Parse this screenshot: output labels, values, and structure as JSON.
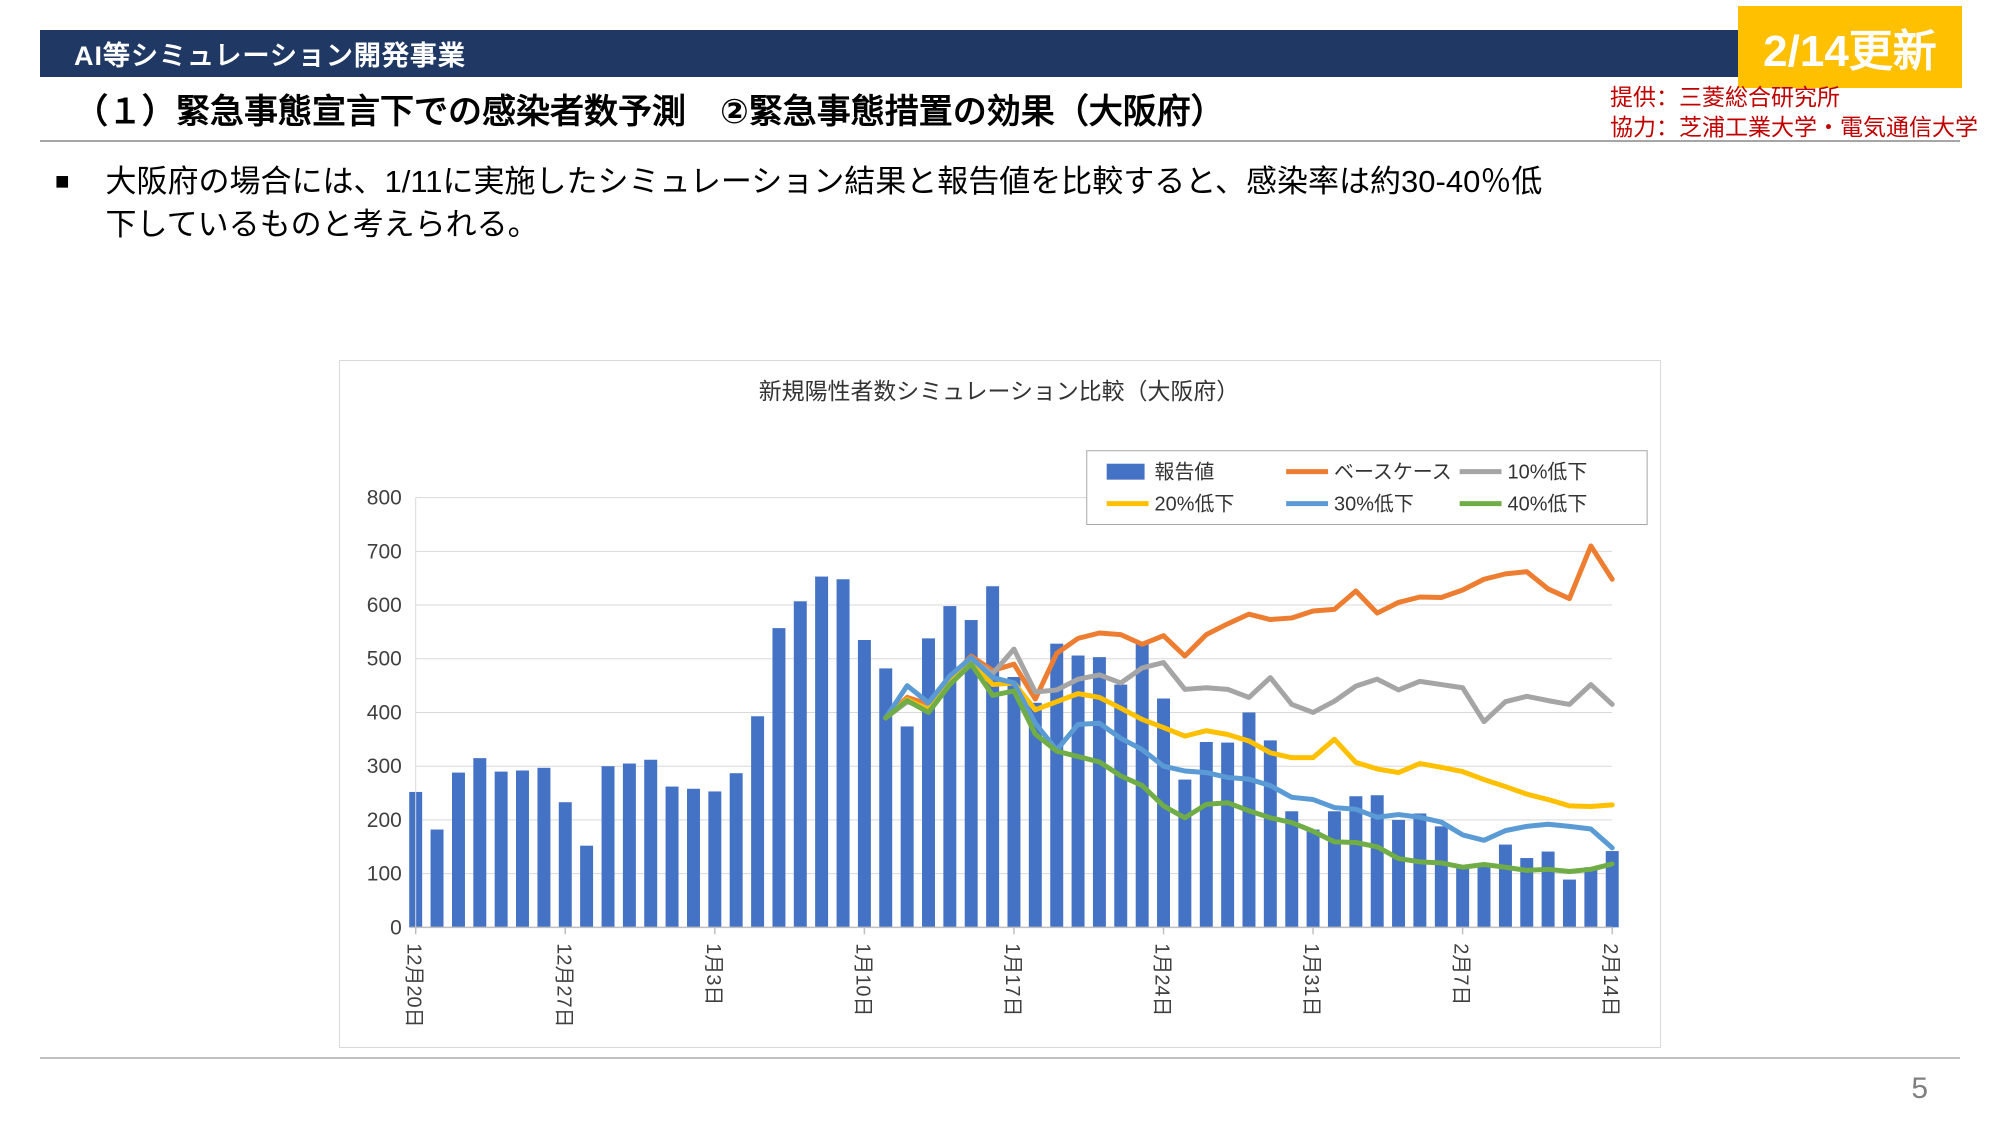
{
  "header": {
    "bar_title": "AI等シミュレーション開発事業",
    "update_badge": "2/14更新",
    "provider": "提供：三菱総合研究所",
    "cooperation": "協力：芝浦工業大学・電気通信大学"
  },
  "title": "（１）緊急事態宣言下での感染者数予測　②緊急事態措置の効果（大阪府）",
  "bullet": {
    "marker": "■",
    "text": "大阪府の場合には、1/11に実施したシミュレーション結果と報告値を比較すると、感染率は約30-40％低下しているものと考えられる。"
  },
  "page_number": "5",
  "colors": {
    "header_navy": "#1f3864",
    "badge_yellow": "#ffc000",
    "credit_red": "#c00000",
    "grid": "#d9d9d9",
    "axis": "#bfbfbf",
    "tick_text": "#404040",
    "chart_text": "#333333",
    "legend_border": "#a6a6a6"
  },
  "chart_data": {
    "type": "bar+line",
    "title": "新規陽性者数シミュレーション比較（大阪府）",
    "xlabel": "",
    "ylabel": "",
    "ylim": [
      0,
      800
    ],
    "ytick_interval": 100,
    "grid": true,
    "legend_position": "upper-right",
    "x_tick_every": 7,
    "x_tick_labels": [
      "12月20日",
      "12月27日",
      "1月3日",
      "1月10日",
      "1月17日",
      "1月24日",
      "1月31日",
      "2月7日",
      "2月14日"
    ],
    "categories": [
      "12月20日",
      "12月21日",
      "12月22日",
      "12月23日",
      "12月24日",
      "12月25日",
      "12月26日",
      "12月27日",
      "12月28日",
      "12月29日",
      "12月30日",
      "12月31日",
      "1月1日",
      "1月2日",
      "1月3日",
      "1月4日",
      "1月5日",
      "1月6日",
      "1月7日",
      "1月8日",
      "1月9日",
      "1月10日",
      "1月11日",
      "1月12日",
      "1月13日",
      "1月14日",
      "1月15日",
      "1月16日",
      "1月17日",
      "1月18日",
      "1月19日",
      "1月20日",
      "1月21日",
      "1月22日",
      "1月23日",
      "1月24日",
      "1月25日",
      "1月26日",
      "1月27日",
      "1月28日",
      "1月29日",
      "1月30日",
      "1月31日",
      "2月1日",
      "2月2日",
      "2月3日",
      "2月4日",
      "2月5日",
      "2月6日",
      "2月7日",
      "2月8日",
      "2月9日",
      "2月10日",
      "2月11日",
      "2月12日",
      "2月13日",
      "2月14日"
    ],
    "bar_series": {
      "name": "報告値",
      "color": "#4472c4",
      "values": [
        252,
        182,
        288,
        315,
        290,
        292,
        297,
        233,
        152,
        300,
        305,
        312,
        262,
        258,
        253,
        287,
        393,
        557,
        607,
        653,
        648,
        535,
        482,
        374,
        538,
        598,
        572,
        635,
        466,
        418,
        528,
        506,
        503,
        452,
        528,
        426,
        275,
        345,
        344,
        400,
        348,
        216,
        182,
        216,
        244,
        246,
        200,
        212,
        188,
        114,
        114,
        154,
        129,
        141,
        89,
        112,
        142
      ]
    },
    "line_series": [
      {
        "name": "ベースケース",
        "color": "#ed7d31",
        "start_index": 22,
        "values": [
          390,
          428,
          415,
          463,
          505,
          478,
          490,
          425,
          510,
          538,
          548,
          545,
          527,
          543,
          505,
          545,
          565,
          583,
          573,
          576,
          589,
          592,
          626,
          585,
          605,
          615,
          614,
          628,
          648,
          658,
          662,
          630,
          612,
          710,
          648
        ]
      },
      {
        "name": "10%低下",
        "color": "#a5a5a5",
        "start_index": 22,
        "values": [
          390,
          420,
          408,
          455,
          500,
          472,
          518,
          438,
          442,
          462,
          470,
          455,
          483,
          493,
          443,
          446,
          443,
          428,
          465,
          415,
          400,
          421,
          449,
          462,
          442,
          458,
          452,
          446,
          383,
          420,
          430,
          422,
          415,
          452,
          415
        ]
      },
      {
        "name": "20%低下",
        "color": "#ffc000",
        "start_index": 22,
        "values": [
          390,
          424,
          405,
          458,
          498,
          452,
          455,
          405,
          420,
          435,
          428,
          408,
          387,
          372,
          356,
          366,
          359,
          347,
          325,
          316,
          316,
          350,
          307,
          295,
          288,
          305,
          298,
          290,
          275,
          262,
          248,
          238,
          226,
          225,
          228
        ]
      },
      {
        "name": "30%低下",
        "color": "#5b9bd5",
        "start_index": 22,
        "values": [
          390,
          450,
          418,
          468,
          502,
          465,
          455,
          380,
          330,
          378,
          380,
          352,
          331,
          300,
          291,
          288,
          279,
          276,
          264,
          242,
          238,
          223,
          220,
          205,
          210,
          205,
          196,
          172,
          162,
          180,
          188,
          192,
          188,
          183,
          148
        ]
      },
      {
        "name": "40%低下",
        "color": "#70ad47",
        "start_index": 22,
        "values": [
          390,
          422,
          400,
          452,
          490,
          432,
          440,
          360,
          328,
          318,
          308,
          282,
          264,
          226,
          204,
          229,
          232,
          217,
          204,
          195,
          179,
          159,
          158,
          150,
          128,
          122,
          120,
          112,
          117,
          112,
          106,
          108,
          104,
          108,
          118
        ]
      }
    ]
  }
}
